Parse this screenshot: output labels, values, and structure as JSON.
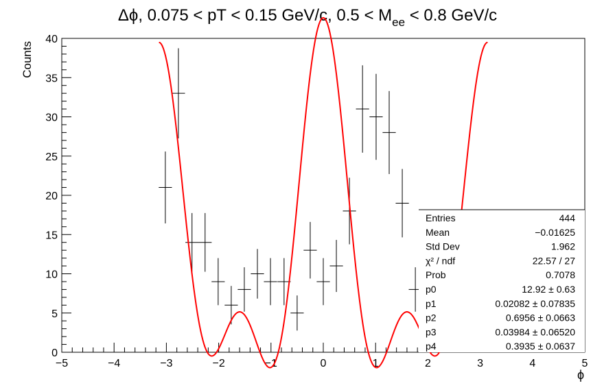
{
  "chart_data": {
    "type": "scatter",
    "title_parts": {
      "main": "Δϕ, 0.075 < pT < 0.15 GeV/c, 0.5 < M",
      "subscript": "ee",
      "tail": " < 0.8 GeV/c"
    },
    "xlabel": "ϕ",
    "ylabel": "Counts",
    "xlim": [
      -5,
      5
    ],
    "ylim": [
      0,
      40
    ],
    "x_ticks": [
      -5,
      -4,
      -3,
      -2,
      -1,
      0,
      1,
      2,
      3,
      4,
      5
    ],
    "x_tick_labels": [
      "−5",
      "−4",
      "−3",
      "−2",
      "−1",
      "0",
      "1",
      "2",
      "3",
      "4",
      "5"
    ],
    "y_ticks": [
      0,
      5,
      10,
      15,
      20,
      25,
      30,
      35,
      40
    ],
    "y_tick_labels": [
      "0",
      "5",
      "10",
      "15",
      "20",
      "25",
      "30",
      "35",
      "40"
    ],
    "bin_half_width": 0.126,
    "points": [
      {
        "x": -3.02,
        "y": 21
      },
      {
        "x": -2.77,
        "y": 33
      },
      {
        "x": -2.51,
        "y": 14
      },
      {
        "x": -2.26,
        "y": 14
      },
      {
        "x": -2.01,
        "y": 9
      },
      {
        "x": -1.76,
        "y": 6
      },
      {
        "x": -1.51,
        "y": 8
      },
      {
        "x": -1.26,
        "y": 10
      },
      {
        "x": -1.01,
        "y": 9
      },
      {
        "x": -0.75,
        "y": 9
      },
      {
        "x": -0.5,
        "y": 5
      },
      {
        "x": -0.25,
        "y": 13
      },
      {
        "x": 0.0,
        "y": 9
      },
      {
        "x": 0.25,
        "y": 11
      },
      {
        "x": 0.5,
        "y": 18
      },
      {
        "x": 0.75,
        "y": 31
      },
      {
        "x": 1.01,
        "y": 30
      },
      {
        "x": 1.26,
        "y": 28
      },
      {
        "x": 1.51,
        "y": 19
      },
      {
        "x": 1.76,
        "y": 8
      },
      {
        "x": 2.01,
        "y": 7
      },
      {
        "x": 2.26,
        "y": 8
      },
      {
        "x": 2.51,
        "y": 4
      },
      {
        "x": 2.77,
        "y": 9
      },
      {
        "x": 3.02,
        "y": 9
      }
    ],
    "fit": {
      "name": "fit",
      "color": "#ff0000",
      "x_range": [
        -3.1416,
        3.1416
      ],
      "params": {
        "p0": 12.92,
        "p1": 0.02082,
        "p2": 0.6956,
        "p3": 0.03984,
        "p4": 0.3935
      }
    },
    "marker_color": "#000000",
    "grid": false
  },
  "stats_box": {
    "rows": [
      {
        "label": "Entries",
        "value": "444"
      },
      {
        "label": "Mean",
        "value": "−0.01625"
      },
      {
        "label": "Std Dev",
        "value": "1.962"
      },
      {
        "label": "χ² / ndf",
        "value": "22.57 / 27"
      },
      {
        "label": "Prob",
        "value": "0.7078"
      },
      {
        "label": "p0",
        "value": "12.92 ± 0.63"
      },
      {
        "label": "p1",
        "value": "0.02082 ± 0.07835"
      },
      {
        "label": "p2",
        "value": "0.6956 ± 0.0663"
      },
      {
        "label": "p3",
        "value": "0.03984 ± 0.06520"
      },
      {
        "label": "p4",
        "value": "0.3935 ± 0.0637"
      }
    ]
  }
}
